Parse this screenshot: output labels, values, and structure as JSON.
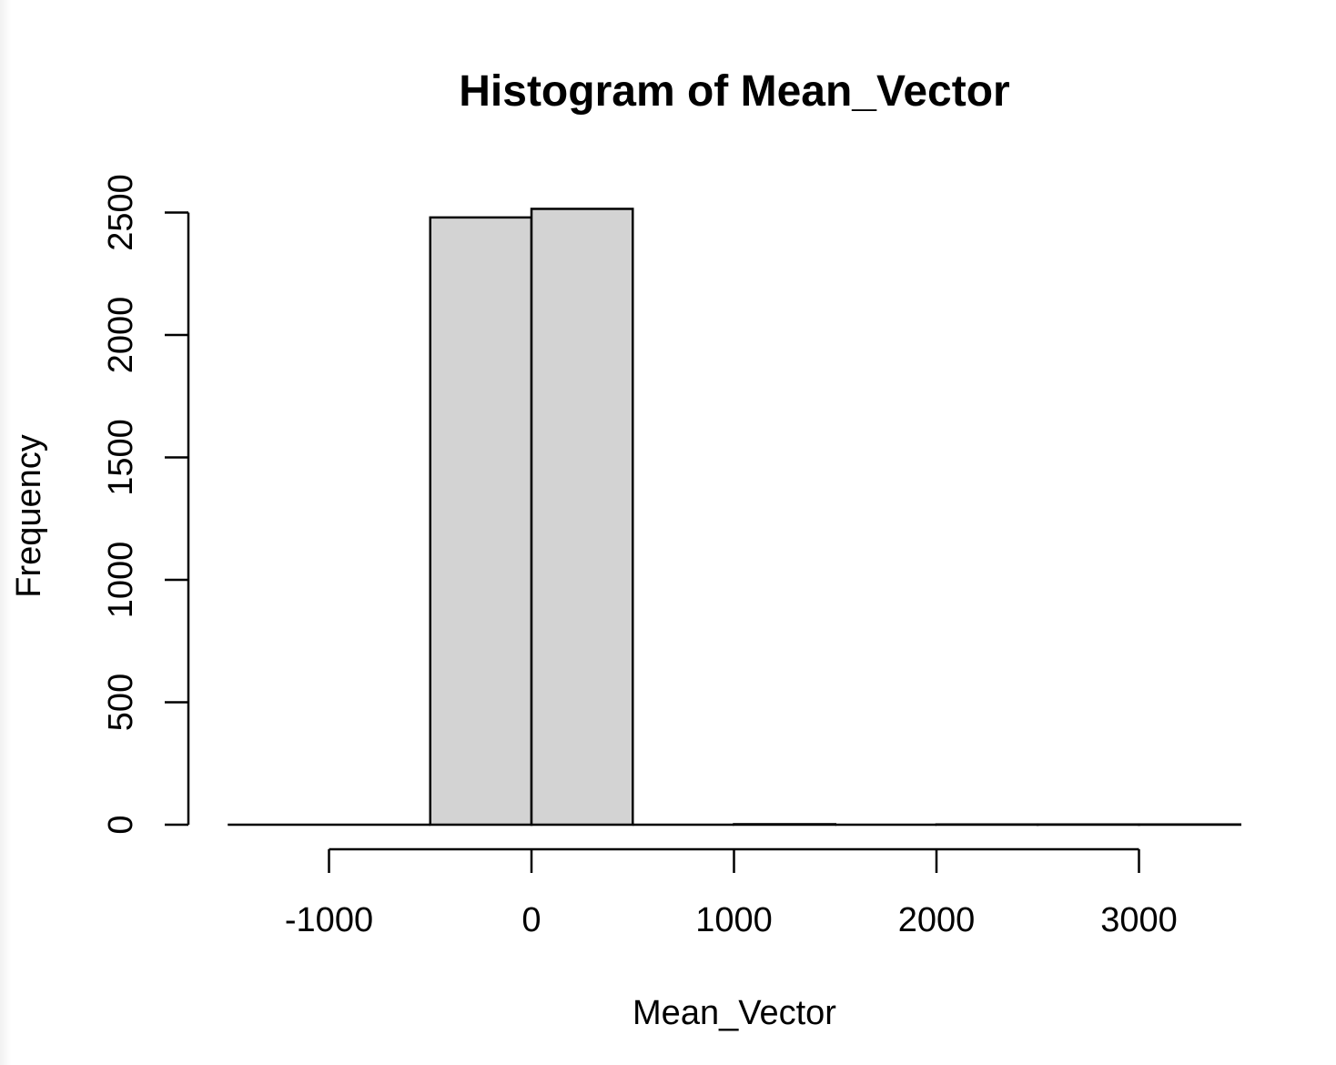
{
  "chart_data": {
    "type": "bar",
    "title": "Histogram of Mean_Vector",
    "xlabel": "Mean_Vector",
    "ylabel": "Frequency",
    "bins": [
      {
        "start": -1500,
        "end": -1000,
        "count": 0
      },
      {
        "start": -1000,
        "end": -500,
        "count": 0
      },
      {
        "start": -500,
        "end": 0,
        "count": 2480
      },
      {
        "start": 0,
        "end": 500,
        "count": 2515
      },
      {
        "start": 500,
        "end": 1000,
        "count": 0
      },
      {
        "start": 1000,
        "end": 1500,
        "count": 2
      },
      {
        "start": 1500,
        "end": 2000,
        "count": 0
      },
      {
        "start": 2000,
        "end": 2500,
        "count": 1
      },
      {
        "start": 2500,
        "end": 3000,
        "count": 1
      },
      {
        "start": 3000,
        "end": 3500,
        "count": 1
      }
    ],
    "x_ticks": [
      -1000,
      0,
      1000,
      2000,
      3000
    ],
    "y_ticks": [
      0,
      500,
      1000,
      1500,
      2000,
      2500
    ],
    "xlim": [
      -1500,
      3500
    ],
    "ylim": [
      0,
      2500
    ],
    "bar_fill": "#d3d3d3",
    "bar_stroke": "#000000",
    "grid": false,
    "legend": "none"
  }
}
